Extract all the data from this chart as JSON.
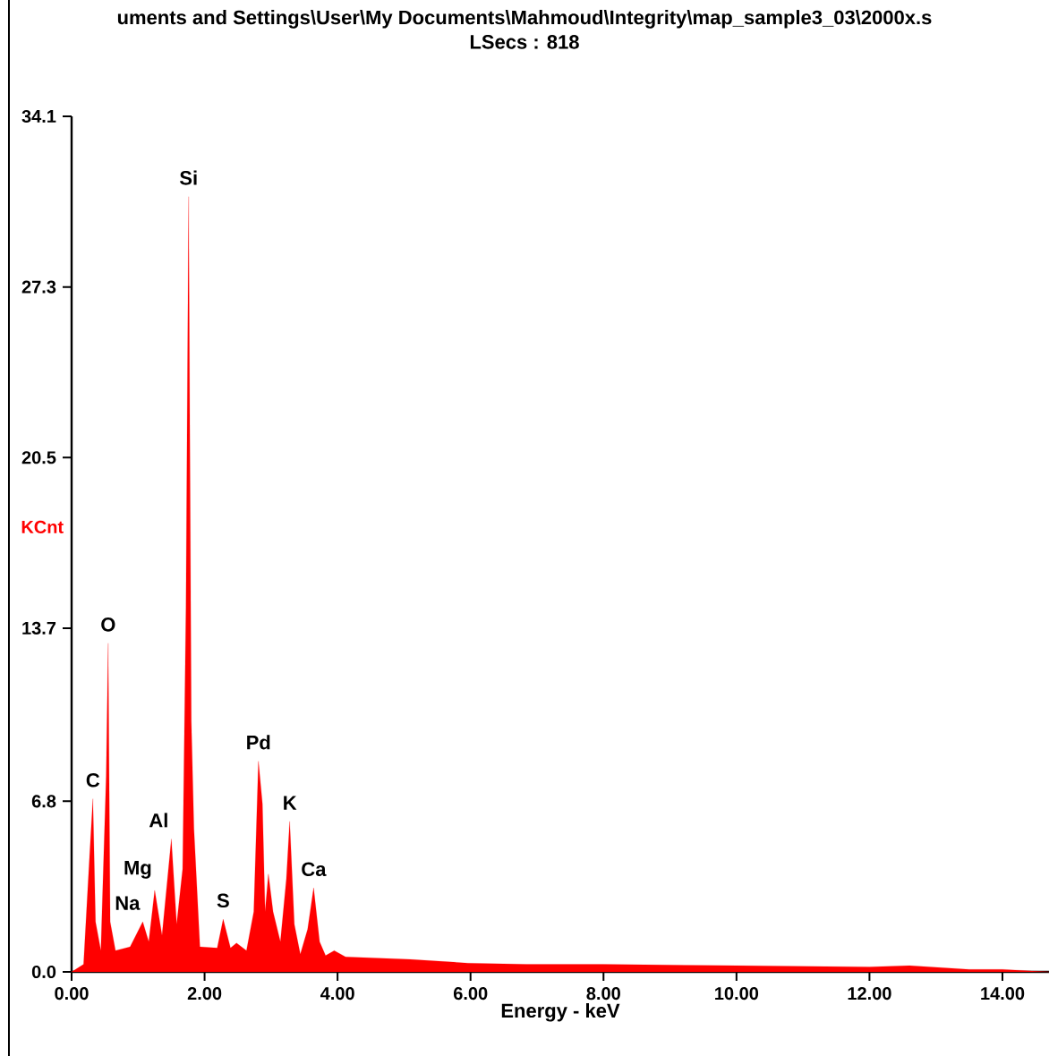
{
  "chart_data": {
    "type": "area",
    "title": "uments and Settings\\User\\My Documents\\Mahmoud\\Integrity\\map_sample3_03\\2000x.s",
    "subtitle": "LSecs : 818",
    "xlabel": "Energy - keV",
    "ylabel": "KCnt",
    "x": [
      0.0,
      0.18,
      0.27,
      0.32,
      0.36,
      0.44,
      0.52,
      0.55,
      0.58,
      0.66,
      0.88,
      1.07,
      1.16,
      1.25,
      1.36,
      1.5,
      1.58,
      1.67,
      1.72,
      1.76,
      1.8,
      1.84,
      1.93,
      2.19,
      2.28,
      2.39,
      2.48,
      2.63,
      2.74,
      2.81,
      2.87,
      2.91,
      2.96,
      3.03,
      3.14,
      3.23,
      3.28,
      3.35,
      3.44,
      3.55,
      3.64,
      3.73,
      3.82,
      3.95,
      4.12,
      5.09,
      5.96,
      6.84,
      8.0,
      10.0,
      12.0,
      12.6,
      13.5,
      14.0,
      14.7
    ],
    "series": [
      {
        "color": "#ff0000",
        "values": [
          0.0,
          0.3,
          4.6,
          6.9,
          2.0,
          0.85,
          7.8,
          13.1,
          2.0,
          0.85,
          1.0,
          2.0,
          1.2,
          3.25,
          1.45,
          5.3,
          1.9,
          4.1,
          14.5,
          30.9,
          10.0,
          5.7,
          1.0,
          0.95,
          2.1,
          0.95,
          1.15,
          0.85,
          2.4,
          8.4,
          6.7,
          2.4,
          3.9,
          2.4,
          1.2,
          3.7,
          6.0,
          1.9,
          0.7,
          1.7,
          3.35,
          1.2,
          0.65,
          0.85,
          0.6,
          0.5,
          0.35,
          0.3,
          0.3,
          0.25,
          0.2,
          0.25,
          0.1,
          0.1,
          0.0
        ]
      }
    ],
    "xlim": [
      0,
      14.7
    ],
    "ylim": [
      0,
      34.1
    ],
    "xticks": [
      {
        "value": 0,
        "label": "0.00"
      },
      {
        "value": 2,
        "label": "2.00"
      },
      {
        "value": 4,
        "label": "4.00"
      },
      {
        "value": 6,
        "label": "6.00"
      },
      {
        "value": 8,
        "label": "8.00"
      },
      {
        "value": 10,
        "label": "10.00"
      },
      {
        "value": 12,
        "label": "12.00"
      },
      {
        "value": 14,
        "label": "14.00"
      }
    ],
    "yticks": [
      {
        "value": 0,
        "label": "0.0"
      },
      6.8,
      13.7,
      20.5,
      27.3,
      34.1
    ],
    "annotations": [
      {
        "text": "C",
        "x": 0.32,
        "y": 6.9
      },
      {
        "text": "O",
        "x": 0.55,
        "y": 13.1
      },
      {
        "text": "Na",
        "x": 1.07,
        "y": 2.0
      },
      {
        "text": "Mg",
        "x": 1.25,
        "y": 3.25
      },
      {
        "text": "Al",
        "x": 1.5,
        "y": 5.3
      },
      {
        "text": "Si",
        "x": 1.76,
        "y": 30.9
      },
      {
        "text": "S",
        "x": 2.28,
        "y": 2.1
      },
      {
        "text": "Pd",
        "x": 2.81,
        "y": 8.4
      },
      {
        "text": "K",
        "x": 3.28,
        "y": 6.0
      },
      {
        "text": "Ca",
        "x": 3.64,
        "y": 3.35
      }
    ]
  }
}
